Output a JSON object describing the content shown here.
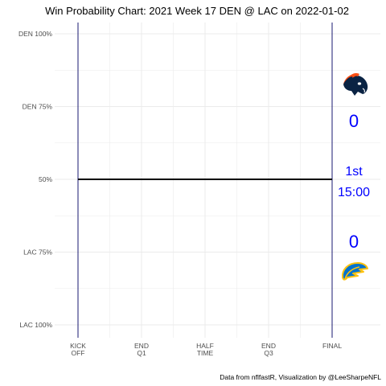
{
  "chart_data": {
    "type": "line",
    "title": "Win Probability Chart: 2021 Week 17 DEN @ LAC on 2022-01-02",
    "caption": "Data from nflfastR, Visualization by @LeeSharpeNFL",
    "x_ticks": [
      {
        "lines": [
          "KICK",
          "OFF"
        ]
      },
      {
        "lines": [
          "END",
          "Q1"
        ]
      },
      {
        "lines": [
          "HALF",
          "TIME"
        ]
      },
      {
        "lines": [
          "END",
          "Q3"
        ]
      },
      {
        "lines": [
          "FINAL"
        ]
      }
    ],
    "y_ticks": [
      "DEN 100%",
      "DEN 75%",
      "50%",
      "LAC 75%",
      "LAC 100%"
    ],
    "xlim": [
      0,
      3600
    ],
    "ylim": [
      0,
      1
    ],
    "series": [
      {
        "values": [
          [
            0,
            0.5
          ],
          [
            3600,
            0.5
          ]
        ],
        "color": "#000000"
      }
    ],
    "home_team": {
      "abbr": "LAC",
      "score": "0",
      "logo": "chargers-bolt-logo"
    },
    "away_team": {
      "abbr": "DEN",
      "score": "0",
      "logo": "broncos-horse-logo"
    },
    "game_clock": {
      "quarter": "1st",
      "time": "15:00"
    },
    "grid": true,
    "colors": {
      "score_text": "#0000ff",
      "vline": "#191970",
      "grid": "#ebebeb"
    }
  }
}
